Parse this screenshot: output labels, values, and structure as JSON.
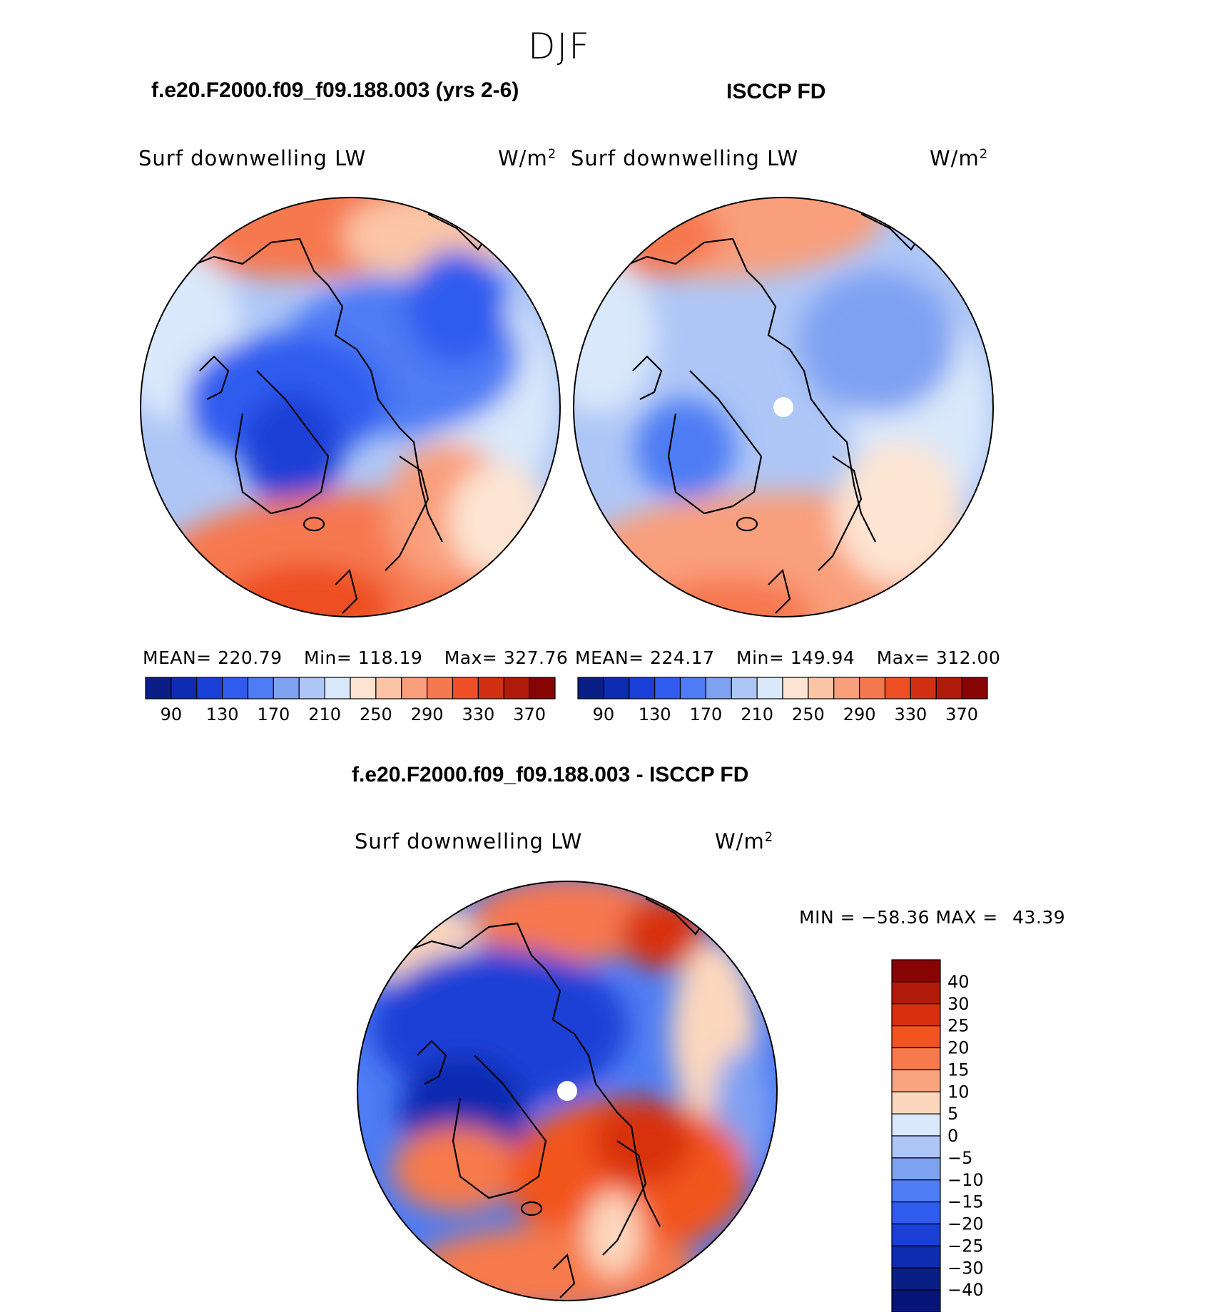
{
  "title": "DJF",
  "chart_data": [
    {
      "type": "heatmap",
      "title": "f.e20.F2000.f09_f09.188.003 (yrs 2-6)",
      "variable": "Surf downwelling LW",
      "units": "W/m",
      "units_exponent": "2",
      "projection": "north polar stereographic",
      "stats": {
        "mean_label": "MEAN=",
        "mean": "220.79",
        "min_label": "Min=",
        "min": "118.19",
        "max_label": "Max=",
        "max": "327.76"
      },
      "levels": [
        90,
        110,
        130,
        150,
        170,
        190,
        210,
        230,
        250,
        270,
        290,
        310,
        330,
        350,
        370
      ],
      "tick_labels": [
        "90",
        "130",
        "170",
        "210",
        "250",
        "290",
        "330",
        "370"
      ]
    },
    {
      "type": "heatmap",
      "title": "ISCCP FD",
      "variable": "Surf downwelling LW",
      "units": "W/m",
      "units_exponent": "2",
      "projection": "north polar stereographic",
      "stats": {
        "mean_label": "MEAN=",
        "mean": "224.17",
        "min_label": "Min=",
        "min": "149.94",
        "max_label": "Max=",
        "max": "312.00"
      },
      "levels": [
        90,
        110,
        130,
        150,
        170,
        190,
        210,
        230,
        250,
        270,
        290,
        310,
        330,
        350,
        370
      ],
      "tick_labels": [
        "90",
        "130",
        "170",
        "210",
        "250",
        "290",
        "330",
        "370"
      ]
    },
    {
      "type": "heatmap",
      "title": "f.e20.F2000.f09_f09.188.003 - ISCCP FD",
      "variable": "Surf downwelling LW",
      "units": "W/m",
      "units_exponent": "2",
      "projection": "north polar stereographic",
      "stats": {
        "min_label": "MIN =",
        "min": "−58.36",
        "max_label": "MAX =",
        "max": "43.39"
      },
      "levels": [
        -40,
        -30,
        -25,
        -20,
        -15,
        -10,
        -5,
        0,
        5,
        10,
        15,
        20,
        25,
        30,
        40
      ],
      "tick_labels": [
        "40",
        "30",
        "25",
        "20",
        "15",
        "10",
        "5",
        "0",
        "−5",
        "−10",
        "−15",
        "−20",
        "−25",
        "−30",
        "−40"
      ]
    }
  ],
  "colors": {
    "abs_scale": [
      "#0a1f86",
      "#0d2cb0",
      "#1a3fd6",
      "#2f5bef",
      "#4d7cf4",
      "#7fa1f2",
      "#aec6f6",
      "#d9e8fa",
      "#fde4d2",
      "#fbc5a6",
      "#f99f7c",
      "#f6784f",
      "#ee4f24",
      "#d23012",
      "#b01a0a",
      "#880404"
    ],
    "diff_scale": [
      "#880404",
      "#b01a0a",
      "#d8300f",
      "#f2541f",
      "#f67a4c",
      "#f9a47f",
      "#fcd7bd",
      "#d9e8fa",
      "#aec6f6",
      "#7fa1f2",
      "#4d7cf4",
      "#2f5bef",
      "#1a3fd6",
      "#0d2cb0",
      "#0a1f86",
      "#061577"
    ]
  }
}
